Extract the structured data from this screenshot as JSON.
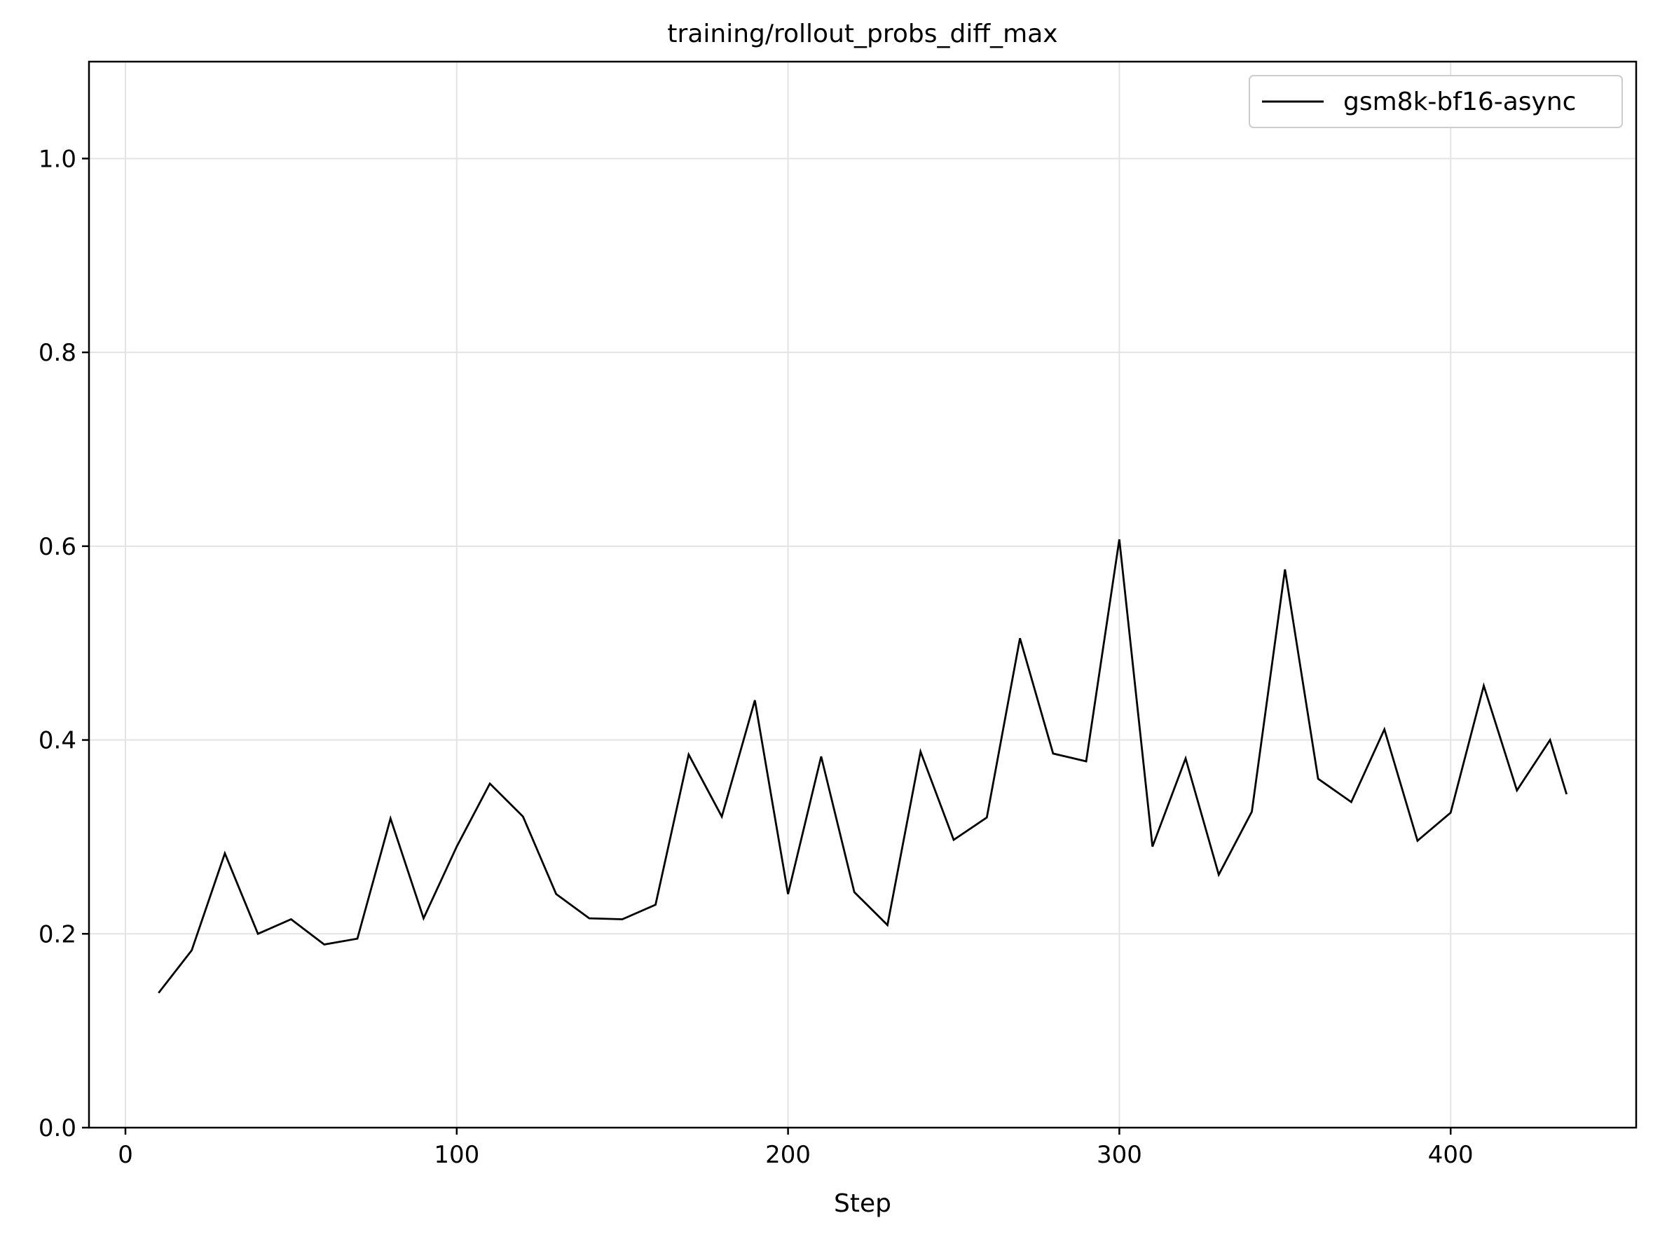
{
  "chart_data": {
    "type": "line",
    "title": "training/rollout_probs_diff_max",
    "xlabel": "Step",
    "ylabel": "",
    "xlim": [
      -11,
      456
    ],
    "ylim": [
      0.0,
      1.1
    ],
    "x_ticks": [
      0,
      100,
      200,
      300,
      400
    ],
    "x_tick_labels": [
      "0",
      "100",
      "200",
      "300",
      "400"
    ],
    "y_ticks": [
      0.0,
      0.2,
      0.4,
      0.6,
      0.8,
      1.0
    ],
    "y_tick_labels": [
      "0.0",
      "0.2",
      "0.4",
      "0.6",
      "0.8",
      "1.0"
    ],
    "grid": true,
    "legend_position": "top-right",
    "series": [
      {
        "name": "gsm8k-bf16-async",
        "color": "#000000",
        "x": [
          10,
          20,
          30,
          40,
          50,
          60,
          70,
          80,
          90,
          100,
          110,
          120,
          130,
          140,
          150,
          160,
          170,
          180,
          190,
          200,
          210,
          220,
          230,
          240,
          250,
          260,
          270,
          280,
          290,
          300,
          310,
          320,
          330,
          340,
          350,
          360,
          370,
          380,
          390,
          400,
          410,
          420,
          430,
          435
        ],
        "values": [
          0.139,
          0.183,
          0.283,
          0.2,
          0.215,
          0.189,
          0.195,
          0.319,
          0.216,
          0.29,
          0.355,
          0.321,
          0.241,
          0.216,
          0.215,
          0.23,
          0.385,
          0.321,
          0.441,
          0.241,
          0.383,
          0.243,
          0.209,
          0.388,
          0.297,
          0.32,
          0.505,
          0.386,
          0.378,
          0.607,
          0.29,
          0.381,
          0.261,
          0.326,
          0.576,
          0.36,
          0.336,
          0.411,
          0.296,
          0.325,
          0.456,
          0.348,
          0.4,
          0.344
        ]
      }
    ]
  }
}
